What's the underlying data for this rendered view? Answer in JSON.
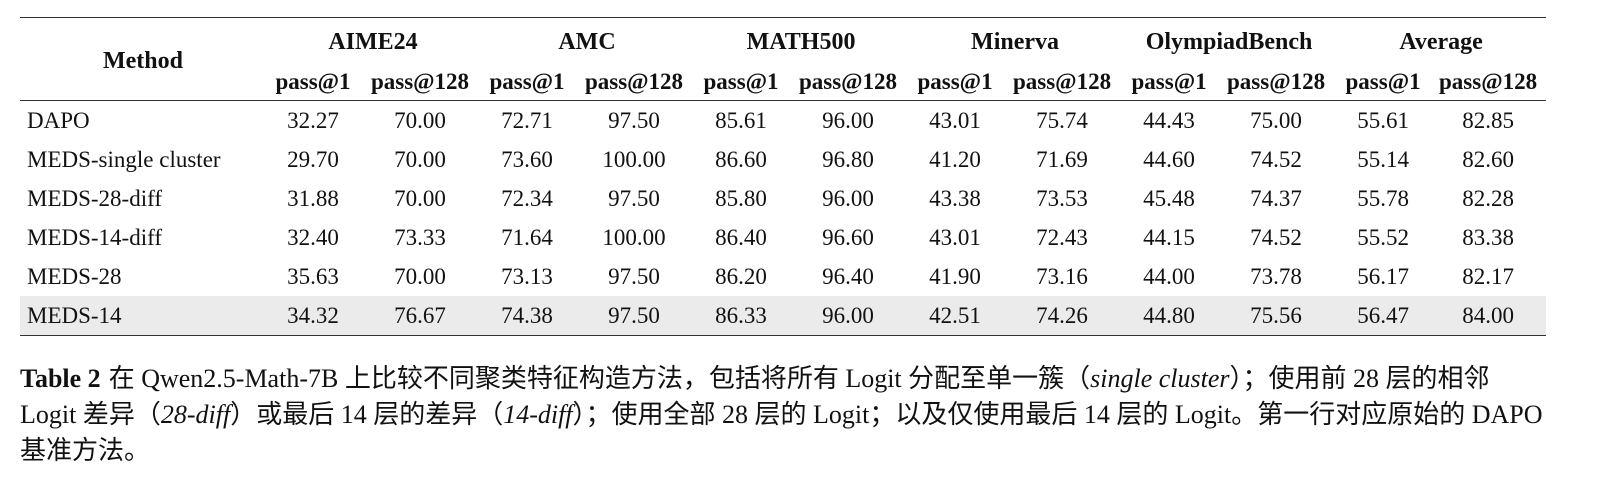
{
  "table": {
    "method_header": "Method",
    "groups": [
      "AIME24",
      "AMC",
      "MATH500",
      "Minerva",
      "OlympiadBench",
      "Average"
    ],
    "metrics": [
      "pass@1",
      "pass@128"
    ],
    "rows": [
      {
        "method": "DAPO",
        "values": [
          "32.27",
          "70.00",
          "72.71",
          "97.50",
          "85.61",
          "96.00",
          "43.01",
          "75.74",
          "44.43",
          "75.00",
          "55.61",
          "82.85"
        ],
        "highlight": false
      },
      {
        "method": "MEDS-single cluster",
        "values": [
          "29.70",
          "70.00",
          "73.60",
          "100.00",
          "86.60",
          "96.80",
          "41.20",
          "71.69",
          "44.60",
          "74.52",
          "55.14",
          "82.60"
        ],
        "highlight": false
      },
      {
        "method": "MEDS-28-diff",
        "values": [
          "31.88",
          "70.00",
          "72.34",
          "97.50",
          "85.80",
          "96.00",
          "43.38",
          "73.53",
          "45.48",
          "74.37",
          "55.78",
          "82.28"
        ],
        "highlight": false
      },
      {
        "method": "MEDS-14-diff",
        "values": [
          "32.40",
          "73.33",
          "71.64",
          "100.00",
          "86.40",
          "96.60",
          "43.01",
          "72.43",
          "44.15",
          "74.52",
          "55.52",
          "83.38"
        ],
        "highlight": false
      },
      {
        "method": "MEDS-28",
        "values": [
          "35.63",
          "70.00",
          "73.13",
          "97.50",
          "86.20",
          "96.40",
          "41.90",
          "73.16",
          "44.00",
          "73.78",
          "56.17",
          "82.17"
        ],
        "highlight": false
      },
      {
        "method": "MEDS-14",
        "values": [
          "34.32",
          "76.67",
          "74.38",
          "97.50",
          "86.33",
          "96.00",
          "42.51",
          "74.26",
          "44.80",
          "75.56",
          "56.47",
          "84.00"
        ],
        "highlight": true
      }
    ]
  },
  "caption": {
    "label": "Table 2",
    "seg1": "在 Qwen2.5-Math-7B 上比较不同聚类特征构造方法，包括将所有 Logit 分配至单一簇（",
    "em1": "single cluster",
    "seg2": "）；使用前 28 层的相邻 Logit 差异（",
    "em2": "28-diff",
    "seg3": "）或最后 14 层的差异（",
    "em3": "14-diff",
    "seg4": "）；使用全部 28 层的 Logit；以及仅使用最后 14 层的 Logit。第一行对应原始的 DAPO 基准方法。"
  }
}
